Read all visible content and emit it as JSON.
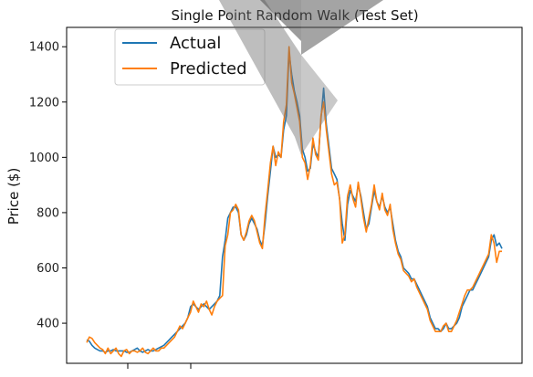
{
  "chart_data": {
    "type": "line",
    "title": "Single Point Random Walk (Test Set)",
    "xlabel": "",
    "ylabel": "Price ($)",
    "ylim": [
      255,
      1470
    ],
    "yticks": [
      400,
      600,
      800,
      1000,
      1200,
      1400
    ],
    "grid": false,
    "legend_position": "top-left",
    "series": [
      {
        "name": "Actual",
        "color": "#1f77b4",
        "values": [
          340,
          335,
          320,
          310,
          305,
          300,
          300,
          295,
          300,
          300,
          305,
          300,
          300,
          300,
          300,
          295,
          295,
          300,
          305,
          310,
          300,
          295,
          300,
          305,
          300,
          300,
          305,
          310,
          315,
          320,
          330,
          340,
          350,
          360,
          370,
          380,
          390,
          400,
          420,
          460,
          470,
          460,
          450,
          460,
          470,
          460,
          450,
          460,
          470,
          480,
          500,
          640,
          700,
          780,
          800,
          820,
          820,
          800,
          720,
          700,
          720,
          760,
          780,
          760,
          740,
          700,
          680,
          760,
          860,
          950,
          1040,
          1000,
          1010,
          1000,
          1100,
          1150,
          1380,
          1300,
          1240,
          1200,
          1150,
          1030,
          1000,
          950,
          960,
          1050,
          1020,
          1000,
          1140,
          1250,
          1120,
          1040,
          960,
          940,
          920,
          850,
          760,
          700,
          830,
          880,
          860,
          840,
          900,
          860,
          800,
          740,
          760,
          820,
          880,
          840,
          820,
          860,
          820,
          800,
          820,
          760,
          700,
          660,
          640,
          600,
          590,
          580,
          560,
          560,
          540,
          520,
          500,
          480,
          460,
          420,
          400,
          380,
          380,
          370,
          380,
          400,
          380,
          380,
          390,
          400,
          420,
          460,
          480,
          500,
          520,
          520,
          540,
          560,
          580,
          600,
          620,
          640,
          700,
          720,
          680,
          690,
          670
        ]
      },
      {
        "name": "Predicted",
        "color": "#ff7f0e",
        "values": [
          330,
          350,
          345,
          330,
          320,
          310,
          305,
          290,
          310,
          290,
          300,
          310,
          290,
          280,
          300,
          305,
          290,
          300,
          300,
          295,
          300,
          310,
          295,
          290,
          300,
          310,
          300,
          300,
          310,
          310,
          320,
          330,
          340,
          350,
          370,
          390,
          380,
          400,
          420,
          440,
          480,
          460,
          440,
          470,
          460,
          480,
          450,
          430,
          460,
          480,
          490,
          500,
          680,
          720,
          800,
          810,
          830,
          810,
          720,
          700,
          730,
          770,
          790,
          770,
          730,
          690,
          670,
          790,
          880,
          980,
          1040,
          970,
          1020,
          1000,
          1130,
          1190,
          1400,
          1270,
          1230,
          1180,
          1130,
          1000,
          980,
          920,
          970,
          1070,
          1010,
          990,
          1150,
          1200,
          1100,
          1020,
          940,
          900,
          910,
          850,
          690,
          720,
          860,
          900,
          850,
          820,
          910,
          850,
          780,
          730,
          780,
          830,
          900,
          840,
          810,
          870,
          810,
          790,
          830,
          740,
          690,
          650,
          630,
          590,
          580,
          570,
          550,
          560,
          530,
          510,
          490,
          470,
          450,
          410,
          390,
          370,
          370,
          370,
          390,
          400,
          370,
          370,
          390,
          410,
          440,
          470,
          500,
          520,
          520,
          530,
          550,
          570,
          590,
          610,
          630,
          650,
          720,
          690,
          620,
          660,
          660
        ]
      }
    ]
  }
}
